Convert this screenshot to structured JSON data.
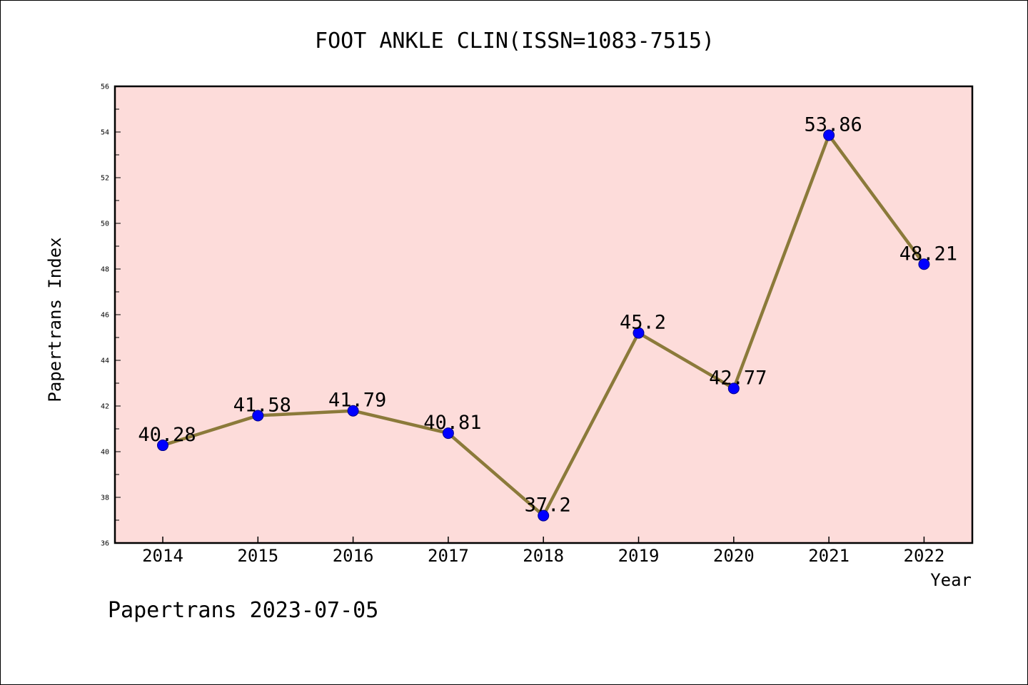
{
  "chart_data": {
    "type": "line",
    "title": "FOOT ANKLE CLIN(ISSN=1083-7515)",
    "xlabel": "Year",
    "ylabel": "Papertrans Index",
    "categories": [
      "2014",
      "2015",
      "2016",
      "2017",
      "2018",
      "2019",
      "2020",
      "2021",
      "2022"
    ],
    "values": [
      40.28,
      41.58,
      41.79,
      40.81,
      37.2,
      45.2,
      42.77,
      53.86,
      48.21
    ],
    "data_labels": [
      "40.28",
      "41.58",
      "41.79",
      "40.81",
      "37.2",
      "45.2",
      "42.77",
      "53.86",
      "48.21"
    ],
    "yticks": [
      "36",
      "38",
      "40",
      "42",
      "44",
      "46",
      "48",
      "50",
      "52",
      "54",
      "56"
    ],
    "ylim": [
      36,
      56
    ],
    "grid": false,
    "colors": {
      "plot_background": "#fddcda",
      "line": "#8b7a3a",
      "marker": "#0000ff"
    }
  },
  "footer": "Papertrans 2023-07-05"
}
